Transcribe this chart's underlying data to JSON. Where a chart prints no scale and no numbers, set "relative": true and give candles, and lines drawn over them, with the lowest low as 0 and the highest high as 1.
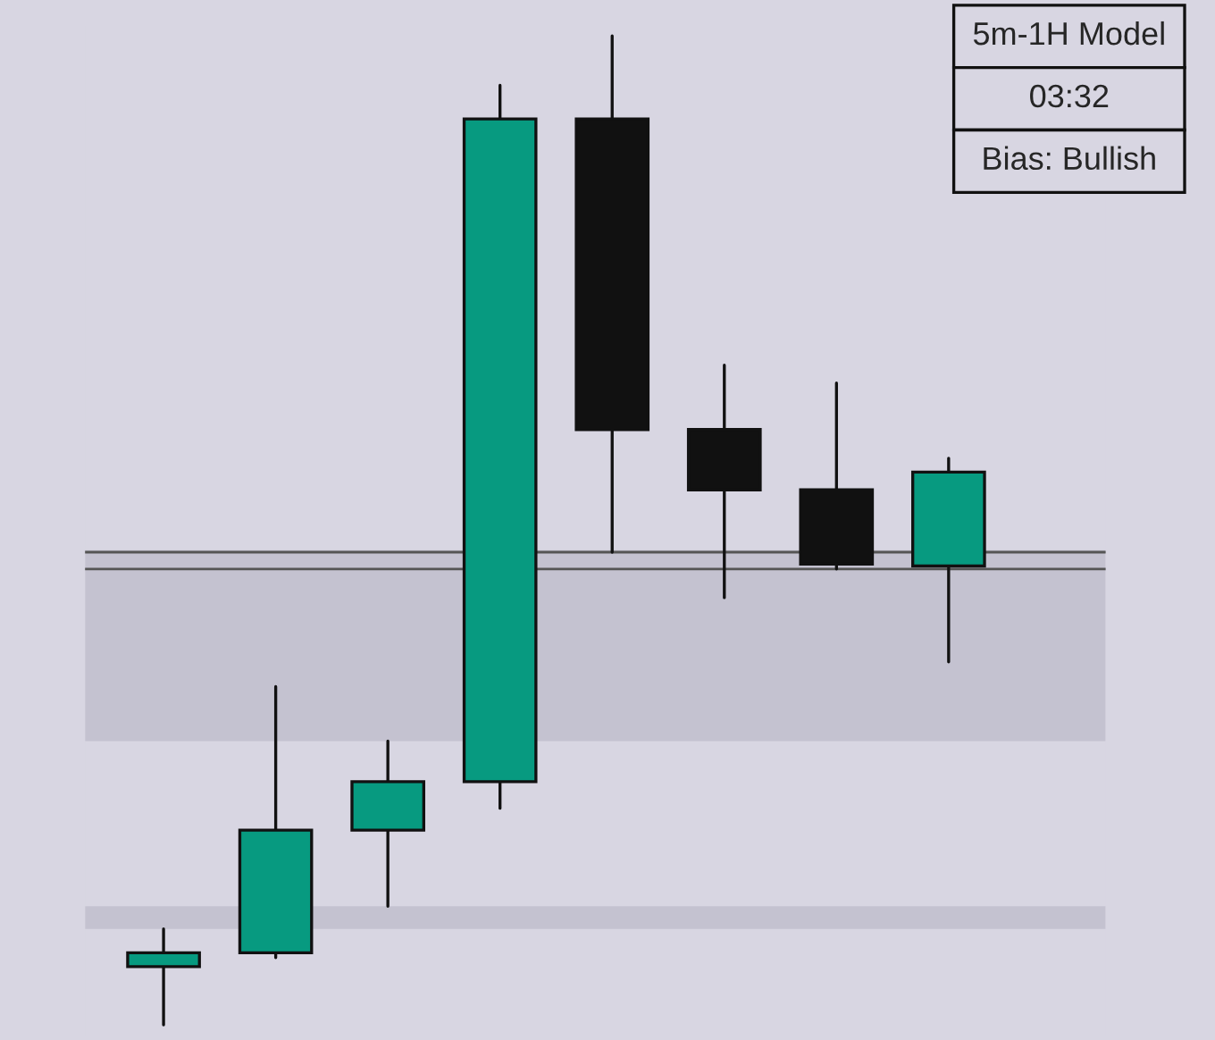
{
  "chart_data": {
    "type": "candlestick",
    "relative": true,
    "categories": [
      null,
      null,
      null,
      null,
      null,
      null,
      null,
      null
    ],
    "ohlc": [
      [
        0.059,
        0.097,
        0.0,
        0.073
      ],
      [
        0.073,
        0.342,
        0.068,
        0.197
      ],
      [
        0.197,
        0.287,
        0.12,
        0.246
      ],
      [
        0.246,
        0.95,
        0.219,
        0.916
      ],
      [
        0.916,
        1.0,
        0.478,
        0.602
      ],
      [
        0.602,
        0.667,
        0.432,
        0.541
      ],
      [
        0.541,
        0.649,
        0.461,
        0.466
      ],
      [
        0.464,
        0.573,
        0.367,
        0.559
      ]
    ],
    "colors": [
      "#079a80",
      "#079a80",
      "#079a80",
      "#079a80",
      "#111111",
      "#111111",
      "#111111",
      "#079a80"
    ],
    "bands": [
      {
        "axis": "y",
        "from": 0.287,
        "to": 0.48,
        "color": "#c4c2d0"
      },
      {
        "axis": "y",
        "from": 0.097,
        "to": 0.12,
        "color": "#c4c2d0"
      }
    ],
    "ref_lines": [
      {
        "axis": "y",
        "value": 0.478,
        "color": "#555555"
      },
      {
        "axis": "y",
        "value": 0.461,
        "color": "#555555"
      }
    ],
    "annotations": [
      "5m-1H Model",
      "03:32",
      "Bias: Bullish"
    ]
  }
}
